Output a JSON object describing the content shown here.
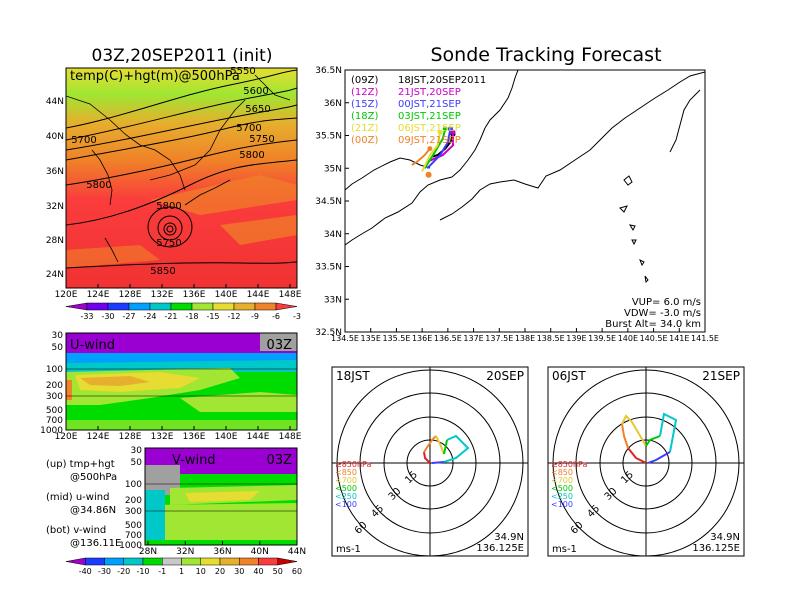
{
  "main_title": "Sonde Tracking Forecast",
  "init_title": "03Z,20SEP2011 (init)",
  "top_panel": {
    "label": "temp(C)+hgt(m)@500hPa",
    "x_ticks": [
      "120E",
      "124E",
      "128E",
      "132E",
      "136E",
      "140E",
      "144E",
      "148E"
    ],
    "y_ticks": [
      "24N",
      "28N",
      "32N",
      "36N",
      "40N",
      "44N"
    ],
    "contour_labels": [
      "5550",
      "5600",
      "5650",
      "5700",
      "5750",
      "5700",
      "5800",
      "5800",
      "5800",
      "5750",
      "5850"
    ]
  },
  "temp_colorbar": {
    "ticks": [
      "-33",
      "-30",
      "-27",
      "-24",
      "-21",
      "-18",
      "-15",
      "-12",
      "-9",
      "-6",
      "-3"
    ],
    "colors": [
      "#a000c8",
      "#7000ee",
      "#1e3cff",
      "#00a0ff",
      "#00c8c8",
      "#00dc00",
      "#a0e632",
      "#e6dc32",
      "#e6af2d",
      "#f08228",
      "#fa3c3c"
    ]
  },
  "uwind_panel": {
    "label": "U-wind",
    "time": "03Z",
    "x_ticks": [
      "120E",
      "124E",
      "128E",
      "132E",
      "136E",
      "140E",
      "144E",
      "148E"
    ],
    "y_ticks": [
      "30",
      "50",
      "100",
      "200",
      "300",
      "500",
      "700",
      "1000"
    ]
  },
  "vwind_panel": {
    "label": "V-wind",
    "time": "03Z",
    "x_ticks": [
      "28N",
      "32N",
      "36N",
      "40N",
      "44N"
    ],
    "y_ticks": [
      "30",
      "50",
      "100",
      "200",
      "300",
      "500",
      "700",
      "1000"
    ]
  },
  "wind_colorbar": {
    "ticks": [
      "-40",
      "-30",
      "-20",
      "-10",
      "-1",
      "1",
      "10",
      "20",
      "30",
      "40",
      "50",
      "60"
    ],
    "colors": [
      "#a000c8",
      "#1e3cff",
      "#00a0ff",
      "#00c8c8",
      "#00dc00",
      "#c8c8c8",
      "#a0e632",
      "#e6dc32",
      "#e6af2d",
      "#f08228",
      "#fa3c3c",
      "#c80000"
    ]
  },
  "legend_notes": [
    {
      "a": "(up) tmp+hgt",
      "b": "@500hPa"
    },
    {
      "a": "(mid) u-wind",
      "b": "@34.86N"
    },
    {
      "a": "(bot) v-wind",
      "b": "@136.11E"
    }
  ],
  "tracking": {
    "x_ticks": [
      "134.5E",
      "135E",
      "135.5E",
      "136E",
      "136.5E",
      "137E",
      "137.5E",
      "138E",
      "138.5E",
      "139E",
      "139.5E",
      "140E",
      "140.5E",
      "141E",
      "141.5E"
    ],
    "y_ticks": [
      "32.5N",
      "33N",
      "33.5N",
      "34N",
      "34.5N",
      "35N",
      "35.5N",
      "36N",
      "36.5N"
    ],
    "launches": [
      {
        "run": "(09Z)",
        "text": "18JST,20SEP2011",
        "color": "#000000"
      },
      {
        "run": "(12Z)",
        "text": "21JST,20SEP",
        "color": "#c800c8"
      },
      {
        "run": "(15Z)",
        "text": "00JST,21SEP",
        "color": "#3c3cff"
      },
      {
        "run": "(18Z)",
        "text": "03JST,21SEP",
        "color": "#00c800"
      },
      {
        "run": "(21Z)",
        "text": "06JST,21SEP",
        "color": "#e6dc32"
      },
      {
        "run": "(00Z)",
        "text": "09JST,21SEP",
        "color": "#f08228"
      }
    ],
    "params": [
      "VUP= 6.0 m/s",
      "VDW= -3.0 m/s",
      "Burst Alt= 34.0 km"
    ]
  },
  "chart_data": [
    {
      "type": "heatmap",
      "title": "03Z,20SEP2011 (init)",
      "label": "temp(C)+hgt(m)@500hPa",
      "x_range": [
        120,
        150
      ],
      "y_range": [
        22,
        47
      ],
      "contour_levels_m": [
        5550,
        5600,
        5650,
        5700,
        5750,
        5800,
        5850
      ]
    },
    {
      "type": "line",
      "title": "Sonde Tracking Forecast",
      "x_range": [
        134.5,
        141.5
      ],
      "y_range": [
        32.5,
        36.5
      ],
      "series": [
        {
          "name": "(09Z) 18JST,20SEP2011",
          "points": [
            [
              136.6,
              35.52
            ],
            [
              136.55,
              35.4
            ],
            [
              136.45,
              35.3
            ],
            [
              136.3,
              35.2
            ],
            [
              136.2,
              35.18
            ]
          ]
        },
        {
          "name": "(12Z) 21JST,20SEP",
          "points": [
            [
              136.6,
              35.55
            ],
            [
              136.6,
              35.35
            ],
            [
              136.4,
              35.2
            ],
            [
              136.1,
              35.1
            ]
          ]
        },
        {
          "name": "(15Z) 00JST,21SEP",
          "points": [
            [
              136.55,
              35.6
            ],
            [
              136.5,
              35.4
            ],
            [
              136.35,
              35.2
            ],
            [
              136.1,
              35.0
            ]
          ]
        },
        {
          "name": "(18Z) 03JST,21SEP",
          "points": [
            [
              136.45,
              35.6
            ],
            [
              136.4,
              35.45
            ],
            [
              136.25,
              35.25
            ],
            [
              136.05,
              35.0
            ]
          ]
        },
        {
          "name": "(21Z) 06JST,21SEP",
          "points": [
            [
              136.35,
              35.55
            ],
            [
              136.3,
              35.35
            ],
            [
              136.15,
              35.2
            ],
            [
              136.0,
              34.95
            ]
          ]
        },
        {
          "name": "(00Z) 09JST,21SEP",
          "points": [
            [
              136.15,
              35.3
            ],
            [
              136.05,
              35.2
            ],
            [
              135.9,
              35.1
            ],
            [
              135.8,
              35.05
            ]
          ]
        }
      ],
      "launch_point": [
        136.125,
        34.9
      ]
    },
    {
      "type": "line",
      "title": "18JST 20SEP hodograph",
      "label_time": "18JST",
      "label_date": "20SEP",
      "rings": [
        "15",
        "30",
        "45",
        "60"
      ],
      "levels": [
        "≥850hPa",
        "<850",
        "<700",
        "<500",
        "<250",
        "<100"
      ],
      "units": "ms-1",
      "site": [
        "34.9N",
        "136.125E"
      ]
    },
    {
      "type": "line",
      "title": "06JST 21SEP hodograph",
      "label_time": "06JST",
      "label_date": "21SEP",
      "rings": [
        "15",
        "30",
        "45",
        "60"
      ],
      "levels": [
        "≥850hPa",
        "<850",
        "<700",
        "<500",
        "<250",
        "<100"
      ],
      "units": "ms-1",
      "site": [
        "34.9N",
        "136.125E"
      ]
    }
  ],
  "hodo_left": {
    "time": "18JST",
    "date": "20SEP",
    "rings": [
      "15",
      "30",
      "45",
      "60"
    ],
    "units": "ms-1",
    "lat": "34.9N",
    "lon": "136.125E",
    "levels": [
      {
        "t": "≥850hPa",
        "c": "#e02020"
      },
      {
        "t": "<850",
        "c": "#f08228"
      },
      {
        "t": "<700",
        "c": "#e6c832"
      },
      {
        "t": "<500",
        "c": "#00c800"
      },
      {
        "t": "<250",
        "c": "#00c8c8"
      },
      {
        "t": "<100",
        "c": "#3c3cff"
      }
    ]
  },
  "hodo_right": {
    "time": "06JST",
    "date": "21SEP",
    "rings": [
      "15",
      "30",
      "45",
      "60"
    ],
    "units": "ms-1",
    "lat": "34.9N",
    "lon": "136.125E",
    "levels": [
      {
        "t": "≥850hPa",
        "c": "#e02020"
      },
      {
        "t": "<850",
        "c": "#f08228"
      },
      {
        "t": "<700",
        "c": "#e6c832"
      },
      {
        "t": "<500",
        "c": "#00c800"
      },
      {
        "t": "<250",
        "c": "#00c8c8"
      },
      {
        "t": "<100",
        "c": "#3c3cff"
      }
    ]
  }
}
